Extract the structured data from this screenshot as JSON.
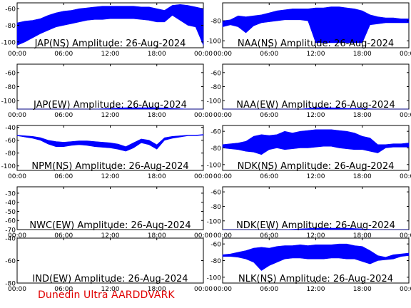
{
  "footer": "Dunedin Ultra AARDDVARK",
  "colors": {
    "trace": "#0000ff",
    "axes": "#000000",
    "footer": "#e00000",
    "background": "#ffffff"
  },
  "chart_data": [
    {
      "type": "line",
      "title": "JAP(NS) Amplitude: 26-Aug-2024",
      "xticks": [
        "00:00",
        "06:00",
        "12:00",
        "18:00",
        "00:00"
      ],
      "yticks": [
        -100,
        -80,
        -60
      ],
      "ylim": [
        -107,
        -53
      ],
      "series": [
        {
          "x": [
            0,
            1,
            2,
            3,
            4,
            5,
            6,
            7,
            8,
            9,
            10,
            11,
            12,
            13,
            14,
            15,
            16,
            17,
            18,
            19,
            20,
            21,
            22,
            23,
            24
          ],
          "upper": [
            -77,
            -75,
            -74,
            -72,
            -68,
            -65,
            -63,
            -62,
            -60,
            -59,
            -58,
            -57,
            -57,
            -57,
            -57,
            -57,
            -58,
            -58,
            -60,
            -62,
            -56,
            -55,
            -56,
            -58,
            -60
          ],
          "lower": [
            -104,
            -100,
            -95,
            -90,
            -86,
            -82,
            -80,
            -78,
            -76,
            -74,
            -73,
            -73,
            -72,
            -72,
            -72,
            -72,
            -73,
            -74,
            -76,
            -76,
            -68,
            -74,
            -80,
            -82,
            -104
          ]
        }
      ]
    },
    {
      "type": "line",
      "title": "NAA(NS) Amplitude: 26-Aug-2024",
      "xticks": [
        "00:00",
        "06:00",
        "12:00",
        "18:00",
        "00:00"
      ],
      "yticks": [
        -100,
        -80
      ],
      "ylim": [
        -107,
        -62
      ],
      "series": [
        {
          "x": [
            0,
            1,
            2,
            3,
            4,
            5,
            6,
            7,
            8,
            9,
            10,
            11,
            12,
            13,
            14,
            15,
            16,
            17,
            18,
            19,
            20,
            21,
            22,
            23,
            24
          ],
          "upper": [
            -80,
            -79,
            -75,
            -76,
            -75,
            -74,
            -72,
            -70,
            -69,
            -68,
            -68,
            -68,
            -67,
            -67,
            -66,
            -66,
            -67,
            -68,
            -70,
            -74,
            -76,
            -77,
            -77,
            -78,
            -78
          ],
          "lower": [
            -86,
            -84,
            -86,
            -92,
            -85,
            -82,
            -81,
            -80,
            -79,
            -79,
            -79,
            -80,
            -102,
            -102,
            -102,
            -102,
            -102,
            -102,
            -102,
            -84,
            -83,
            -82,
            -82,
            -82,
            -82
          ]
        }
      ]
    },
    {
      "type": "line",
      "title": "JAP(EW) Amplitude: 26-Aug-2024",
      "xticks": [
        "00:00",
        "06:00",
        "12:00",
        "18:00",
        "00:00"
      ],
      "yticks": [
        -100,
        -80,
        -60
      ],
      "ylim": [
        -112,
        -48
      ],
      "series": [
        {
          "x": [
            0,
            2,
            4,
            6,
            8,
            10,
            12,
            14,
            16,
            18,
            20,
            22,
            24
          ],
          "upper": [
            -118,
            -118,
            -118,
            -118,
            -114,
            -112,
            -111,
            -110,
            -110,
            -110,
            -111,
            -112,
            -118
          ],
          "lower": [
            -118,
            -118,
            -118,
            -118,
            -118,
            -118,
            -118,
            -118,
            -118,
            -118,
            -118,
            -118,
            -118
          ]
        }
      ]
    },
    {
      "type": "line",
      "title": "NAA(EW) Amplitude: 26-Aug-2024",
      "xticks": [
        "00:00",
        "06:00",
        "12:00",
        "18:00",
        "00:00"
      ],
      "yticks": [
        -100,
        -80,
        -60
      ],
      "ylim": [
        -112,
        -48
      ],
      "series": [
        {
          "x": [
            0,
            2,
            4,
            6,
            8,
            10,
            12,
            14,
            16,
            18,
            20,
            22,
            24
          ],
          "upper": [
            -118,
            -118,
            -118,
            -118,
            -113,
            -112,
            -110,
            -110,
            -111,
            -111,
            -112,
            -113,
            -118
          ],
          "lower": [
            -118,
            -118,
            -118,
            -118,
            -118,
            -118,
            -118,
            -118,
            -118,
            -118,
            -118,
            -118,
            -118
          ]
        }
      ]
    },
    {
      "type": "line",
      "title": "NPM(NS) Amplitude: 26-Aug-2024",
      "xticks": [
        "00:00",
        "06:00",
        "12:00",
        "18:00",
        "00:00"
      ],
      "yticks": [
        -100,
        -80,
        -60,
        -40
      ],
      "ylim": [
        -107,
        -37
      ],
      "series": [
        {
          "x": [
            0,
            1,
            2,
            3,
            4,
            5,
            6,
            7,
            8,
            9,
            10,
            11,
            12,
            13,
            14,
            15,
            16,
            17,
            18,
            19,
            20,
            21,
            22,
            23,
            24
          ],
          "upper": [
            -52,
            -53,
            -54,
            -56,
            -60,
            -62,
            -63,
            -62,
            -61,
            -61,
            -62,
            -63,
            -64,
            -66,
            -70,
            -64,
            -58,
            -60,
            -67,
            -56,
            -54,
            -53,
            -52,
            -52,
            -51
          ],
          "lower": [
            -53,
            -55,
            -57,
            -60,
            -66,
            -70,
            -70,
            -68,
            -67,
            -68,
            -70,
            -71,
            -72,
            -74,
            -77,
            -72,
            -64,
            -67,
            -74,
            -60,
            -57,
            -55,
            -53,
            -53,
            -52
          ]
        }
      ]
    },
    {
      "type": "line",
      "title": "NDK(NS) Amplitude: 26-Aug-2024",
      "xticks": [
        "00:00",
        "06:00",
        "12:00",
        "18:00",
        "00:00"
      ],
      "yticks": [
        -100,
        -80,
        -60
      ],
      "ylim": [
        -107,
        -53
      ],
      "series": [
        {
          "x": [
            0,
            1,
            2,
            3,
            4,
            5,
            6,
            7,
            8,
            9,
            10,
            11,
            12,
            13,
            14,
            15,
            16,
            17,
            18,
            19,
            20,
            21,
            22,
            23,
            24
          ],
          "upper": [
            -76,
            -75,
            -74,
            -72,
            -66,
            -64,
            -65,
            -64,
            -60,
            -62,
            -60,
            -59,
            -58,
            -58,
            -58,
            -59,
            -60,
            -62,
            -66,
            -68,
            -76,
            -76,
            -75,
            -75,
            -74
          ],
          "lower": [
            -80,
            -81,
            -82,
            -84,
            -85,
            -88,
            -82,
            -80,
            -82,
            -81,
            -80,
            -80,
            -79,
            -78,
            -78,
            -80,
            -81,
            -82,
            -82,
            -84,
            -86,
            -80,
            -79,
            -79,
            -79
          ]
        }
      ]
    },
    {
      "type": "line",
      "title": "NWC(EW) Amplitude: 26-Aug-2024",
      "xticks": [
        "00:00",
        "06:00",
        "12:00",
        "18:00",
        "00:00"
      ],
      "yticks": [
        -70,
        -60,
        -50,
        -40,
        -30
      ],
      "ylim": [
        -70,
        -23
      ],
      "series": []
    },
    {
      "type": "line",
      "title": "NDK(EW) Amplitude: 26-Aug-2024",
      "xticks": [
        "00:00",
        "06:00",
        "12:00",
        "18:00",
        "00:00"
      ],
      "yticks": [
        -100,
        -80,
        -60
      ],
      "ylim": [
        -112,
        -53
      ],
      "series": [
        {
          "x": [
            0,
            2,
            4,
            6,
            8,
            10,
            12,
            14,
            16,
            18,
            20,
            22,
            24
          ],
          "upper": [
            -118,
            -118,
            -118,
            -118,
            -112,
            -111,
            -110,
            -110,
            -110,
            -111,
            -112,
            -112,
            -118
          ],
          "lower": [
            -118,
            -118,
            -118,
            -118,
            -118,
            -118,
            -118,
            -118,
            -118,
            -118,
            -118,
            -118,
            -118
          ]
        }
      ]
    },
    {
      "type": "line",
      "title": "IND(EW) Amplitude: 26-Aug-2024",
      "xticks": [
        "00:00",
        "06:00",
        "12:00",
        "18:00",
        "00:00"
      ],
      "yticks": [
        -80,
        -60,
        -40
      ],
      "ylim": [
        -80,
        -40
      ],
      "series": []
    },
    {
      "type": "line",
      "title": "NLK(NS) Amplitude: 26-Aug-2024",
      "xticks": [
        "00:00",
        "06:00",
        "12:00",
        "18:00",
        "00:00"
      ],
      "yticks": [
        -100,
        -80,
        -60
      ],
      "ylim": [
        -107,
        -53
      ],
      "series": [
        {
          "x": [
            0,
            1,
            2,
            3,
            4,
            5,
            6,
            7,
            8,
            9,
            10,
            11,
            12,
            13,
            14,
            15,
            16,
            17,
            18,
            19,
            20,
            21,
            22,
            23,
            24
          ],
          "upper": [
            -73,
            -72,
            -70,
            -68,
            -65,
            -64,
            -65,
            -63,
            -62,
            -62,
            -61,
            -62,
            -61,
            -61,
            -61,
            -60,
            -60,
            -62,
            -63,
            -68,
            -74,
            -76,
            -73,
            -72,
            -71
          ],
          "lower": [
            -75,
            -75,
            -76,
            -78,
            -82,
            -92,
            -86,
            -82,
            -78,
            -77,
            -77,
            -78,
            -78,
            -78,
            -77,
            -77,
            -78,
            -78,
            -81,
            -84,
            -80,
            -79,
            -78,
            -75,
            -74
          ]
        }
      ]
    }
  ]
}
